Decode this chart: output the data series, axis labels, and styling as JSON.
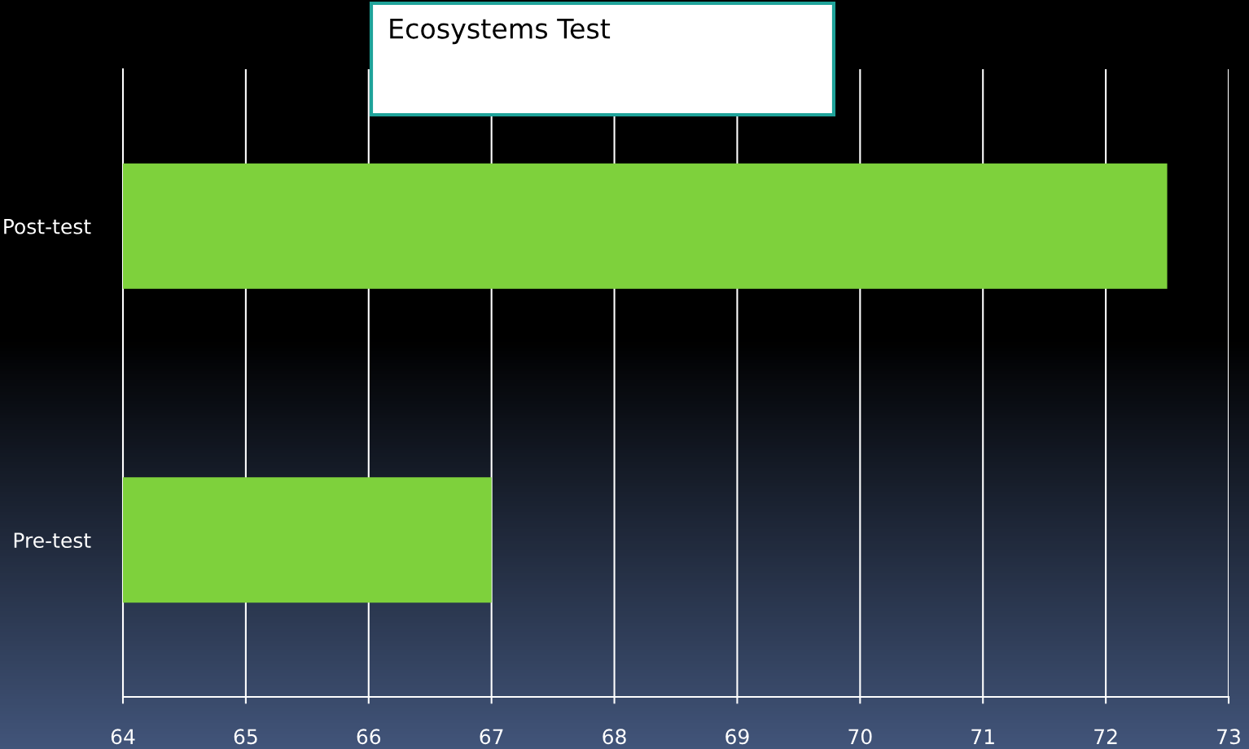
{
  "chart_data": {
    "type": "bar",
    "orientation": "horizontal",
    "title": "Ecosystems Test",
    "categories": [
      "Post-test",
      "Pre-test"
    ],
    "series": [
      {
        "color": "#7ed13c",
        "values": [
          72.5,
          67
        ]
      }
    ],
    "xlim": [
      64,
      73
    ],
    "xticks": [
      64,
      65,
      66,
      67,
      68,
      69,
      70,
      71,
      72,
      73
    ],
    "grid": "x",
    "legend": false
  }
}
